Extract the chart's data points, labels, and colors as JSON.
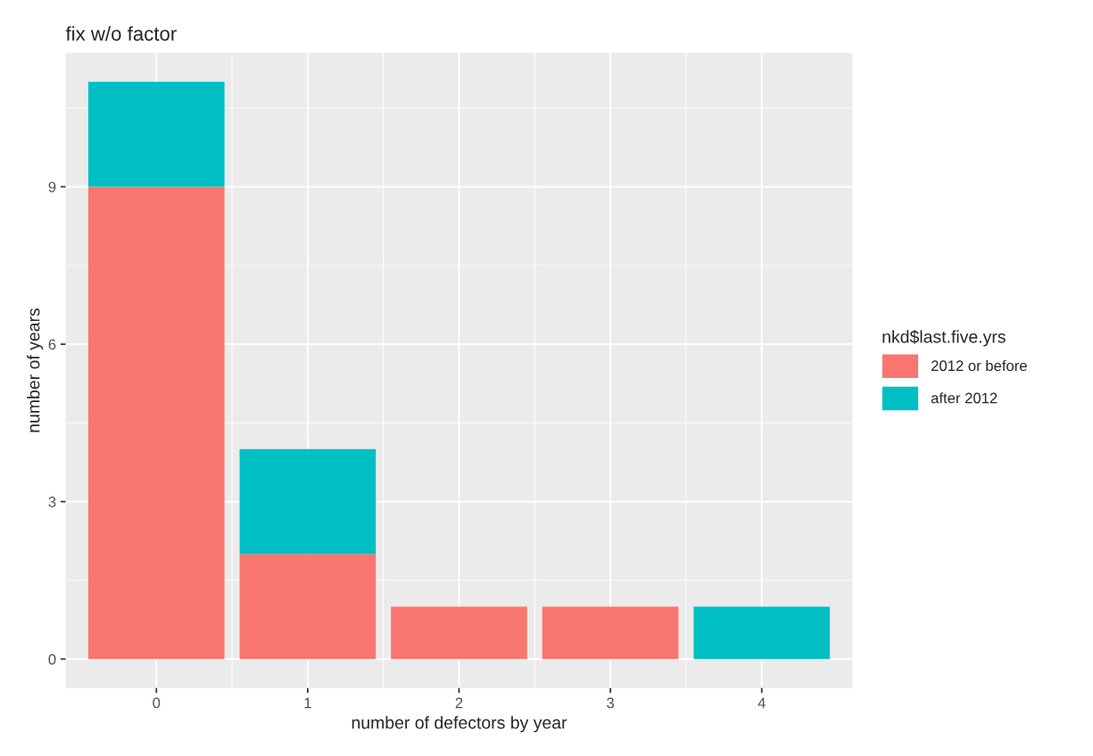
{
  "chart_data": {
    "type": "bar",
    "title": "fix w/o factor",
    "xlabel": "number of defectors by year",
    "ylabel": "number of years",
    "legend_title": "nkd$last.five.yrs",
    "x": [
      0,
      1,
      2,
      3,
      4
    ],
    "stacked": true,
    "series": [
      {
        "name": "2012 or before",
        "color": "#f8766d",
        "values": [
          9,
          2,
          1,
          1,
          0
        ]
      },
      {
        "name": "after 2012",
        "color": "#00bfc4",
        "values": [
          2,
          2,
          0,
          0,
          1
        ]
      }
    ],
    "xlim": [
      -0.6,
      4.6
    ],
    "xticks": [
      0,
      1,
      2,
      3,
      4
    ],
    "ylim": [
      -0.55,
      11.55
    ],
    "yticks": [
      0,
      3,
      6,
      9
    ],
    "grid": true,
    "legend": "right"
  }
}
